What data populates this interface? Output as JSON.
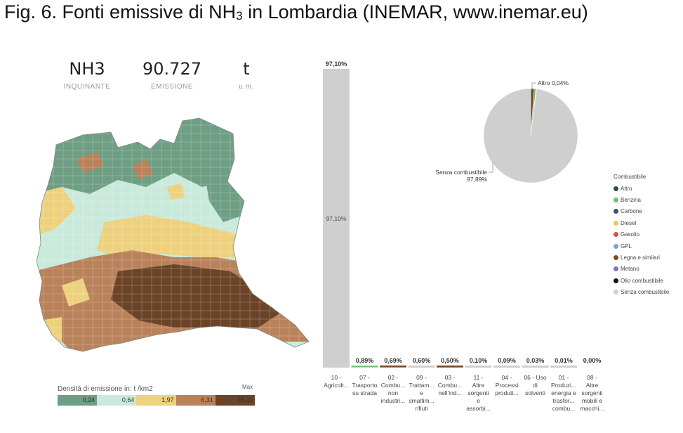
{
  "figure": {
    "title_prefix": "Fig. 6. Fonti emissive di NH",
    "title_sub": "3",
    "title_suffix": " in Lombardia (INEMAR, www.inemar.eu)"
  },
  "kpis": [
    {
      "value": "NH3",
      "label": "INQUINANTE"
    },
    {
      "value": "90.727",
      "label": "EMISSIONE"
    },
    {
      "value": "t",
      "label": "u.m."
    }
  ],
  "map_legend": {
    "title": "Densità di emissione in: t /km2",
    "max_label": "Max",
    "classes": [
      {
        "value": "0,24",
        "color": "#6e9e84"
      },
      {
        "value": "0,64",
        "color": "#c9eadb"
      },
      {
        "value": "1,97",
        "color": "#edd17e"
      },
      {
        "value": "6,31",
        "color": "#b9825a"
      },
      {
        "value": "38,11",
        "color": "#6b4428"
      }
    ]
  },
  "chart_data": [
    {
      "type": "bar",
      "categories": [
        "10 - Agricolt...",
        "07 - Trasporto su strada",
        "02 - Combu... non industri...",
        "09 - Trattam... e smaltim... rifiuti",
        "03 - Combu... nell'ind...",
        "11 - Altre sorgenti e assorbi...",
        "04 - Processi produtt...",
        "06 - Uso di solventi",
        "01 - Produzi... energia e trasfor... combu...",
        "08 - Altre sorgenti mobili e macchi..."
      ],
      "values": [
        97.1,
        0.89,
        0.69,
        0.6,
        0.5,
        0.1,
        0.09,
        0.03,
        0.01,
        0.0
      ],
      "value_labels": [
        "97,10%",
        "0,89%",
        "0,69%",
        "0,60%",
        "0,50%",
        "0,10%",
        "0,09%",
        "0,03%",
        "0,01%",
        "0,00%"
      ],
      "inner_label": "97,10%",
      "stacks": [
        [
          {
            "name": "Senza combustibile",
            "value": 97.1
          }
        ],
        [
          {
            "name": "Senza combustibile",
            "value": 0.2
          },
          {
            "name": "Benzina",
            "value": 0.6
          },
          {
            "name": "Diesel",
            "value": 0.09
          }
        ],
        [
          {
            "name": "Senza combustibile",
            "value": 0.1
          },
          {
            "name": "Legna e similari",
            "value": 0.59
          }
        ],
        [
          {
            "name": "Senza combustibile",
            "value": 0.6
          }
        ],
        [
          {
            "name": "Senza combustibile",
            "value": 0.05
          },
          {
            "name": "Legna e similari",
            "value": 0.45
          }
        ],
        [
          {
            "name": "Senza combustibile",
            "value": 0.1
          }
        ],
        [
          {
            "name": "Senza combustibile",
            "value": 0.09
          }
        ],
        [
          {
            "name": "Senza combustibile",
            "value": 0.03
          }
        ],
        [
          {
            "name": "Senza combustibile",
            "value": 0.01
          }
        ],
        [
          {
            "name": "Senza combustibile",
            "value": 0.0
          }
        ]
      ],
      "ylim": [
        0,
        97.1
      ]
    },
    {
      "type": "pie",
      "slices": [
        {
          "name": "Senza combustibile",
          "value": 97.89,
          "label": "Senza combustibile\n97,89%"
        },
        {
          "name": "Legna e similari",
          "value": 1.2
        },
        {
          "name": "Benzina",
          "value": 0.6
        },
        {
          "name": "Diesel",
          "value": 0.1
        },
        {
          "name": "Gasolio",
          "value": 0.07
        },
        {
          "name": "Altro",
          "value": 0.04,
          "label": "Altro 0,04%"
        }
      ]
    }
  ],
  "combustibile_legend": {
    "title": "Combustibile",
    "items": [
      {
        "name": "Altro",
        "color": "#2f4f2f"
      },
      {
        "name": "Benzina",
        "color": "#6fbf73"
      },
      {
        "name": "Carbone",
        "color": "#3d4f6b"
      },
      {
        "name": "Diesel",
        "color": "#e8c95a"
      },
      {
        "name": "Gasolio",
        "color": "#d05050"
      },
      {
        "name": "GPL",
        "color": "#6fa8dc"
      },
      {
        "name": "Legna e similari",
        "color": "#7a4a28"
      },
      {
        "name": "Metano",
        "color": "#8e6cc0"
      },
      {
        "name": "Olio combustibile",
        "color": "#111111"
      },
      {
        "name": "Senza combustibile",
        "color": "#cfcfcf"
      }
    ]
  }
}
